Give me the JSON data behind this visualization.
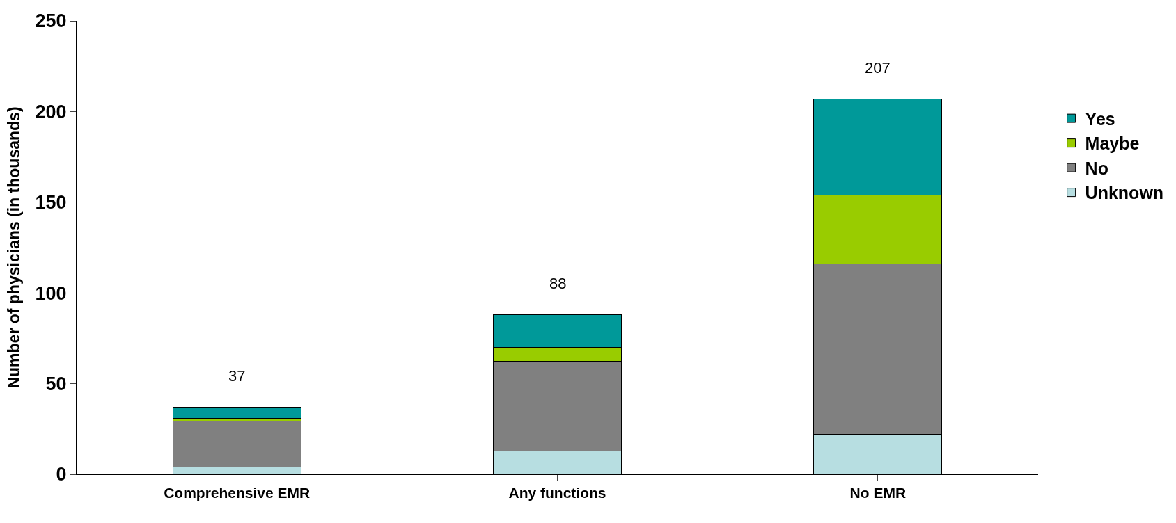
{
  "chart_data": {
    "type": "bar",
    "stacked": true,
    "ylabel": "Number of physicians (in thousands)",
    "categories": [
      "Comprehensive EMR",
      "Any functions",
      "No EMR"
    ],
    "series": [
      {
        "name": "Unknown",
        "color": "#b7dee1",
        "values": [
          4,
          13,
          22
        ]
      },
      {
        "name": "No",
        "color": "#808080",
        "values": [
          25.5,
          49.5,
          94
        ]
      },
      {
        "name": "Maybe",
        "color": "#99cc00",
        "values": [
          1.5,
          7.5,
          38
        ]
      },
      {
        "name": "Yes",
        "color": "#009999",
        "values": [
          6,
          18,
          53
        ]
      }
    ],
    "totals": [
      "37",
      "88",
      "207"
    ],
    "ylim": [
      0,
      250
    ],
    "yticks": [
      0,
      50,
      100,
      150,
      200,
      250
    ],
    "legend": "right"
  }
}
